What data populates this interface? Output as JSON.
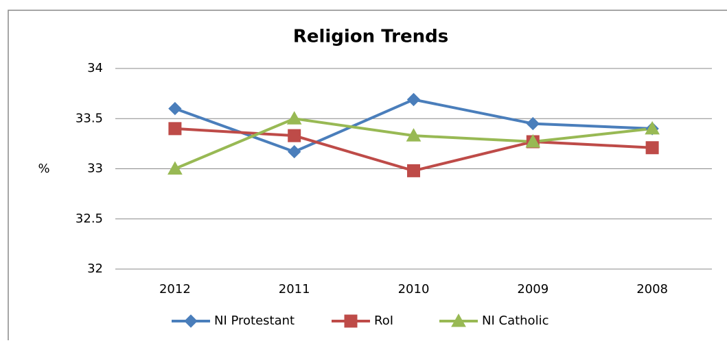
{
  "chart_data": {
    "type": "line",
    "title": "Religion Trends",
    "y_label": "%",
    "categories": [
      "2012",
      "2011",
      "2010",
      "2009",
      "2008"
    ],
    "series": [
      {
        "name": "NI Protestant",
        "color": "#4a7ebb",
        "marker": "diamond",
        "values": [
          33.6,
          33.17,
          33.69,
          33.45,
          33.4
        ]
      },
      {
        "name": "RoI",
        "color": "#be4b48",
        "marker": "square",
        "values": [
          33.4,
          33.33,
          32.98,
          33.27,
          33.21
        ]
      },
      {
        "name": "NI Catholic",
        "color": "#98b954",
        "marker": "triangle",
        "values": [
          33.0,
          33.5,
          33.33,
          33.27,
          33.4
        ]
      }
    ],
    "ylim": [
      32,
      34
    ],
    "yticks": [
      32,
      32.5,
      33,
      33.5,
      34
    ],
    "grid": true,
    "legend": "bottom"
  }
}
